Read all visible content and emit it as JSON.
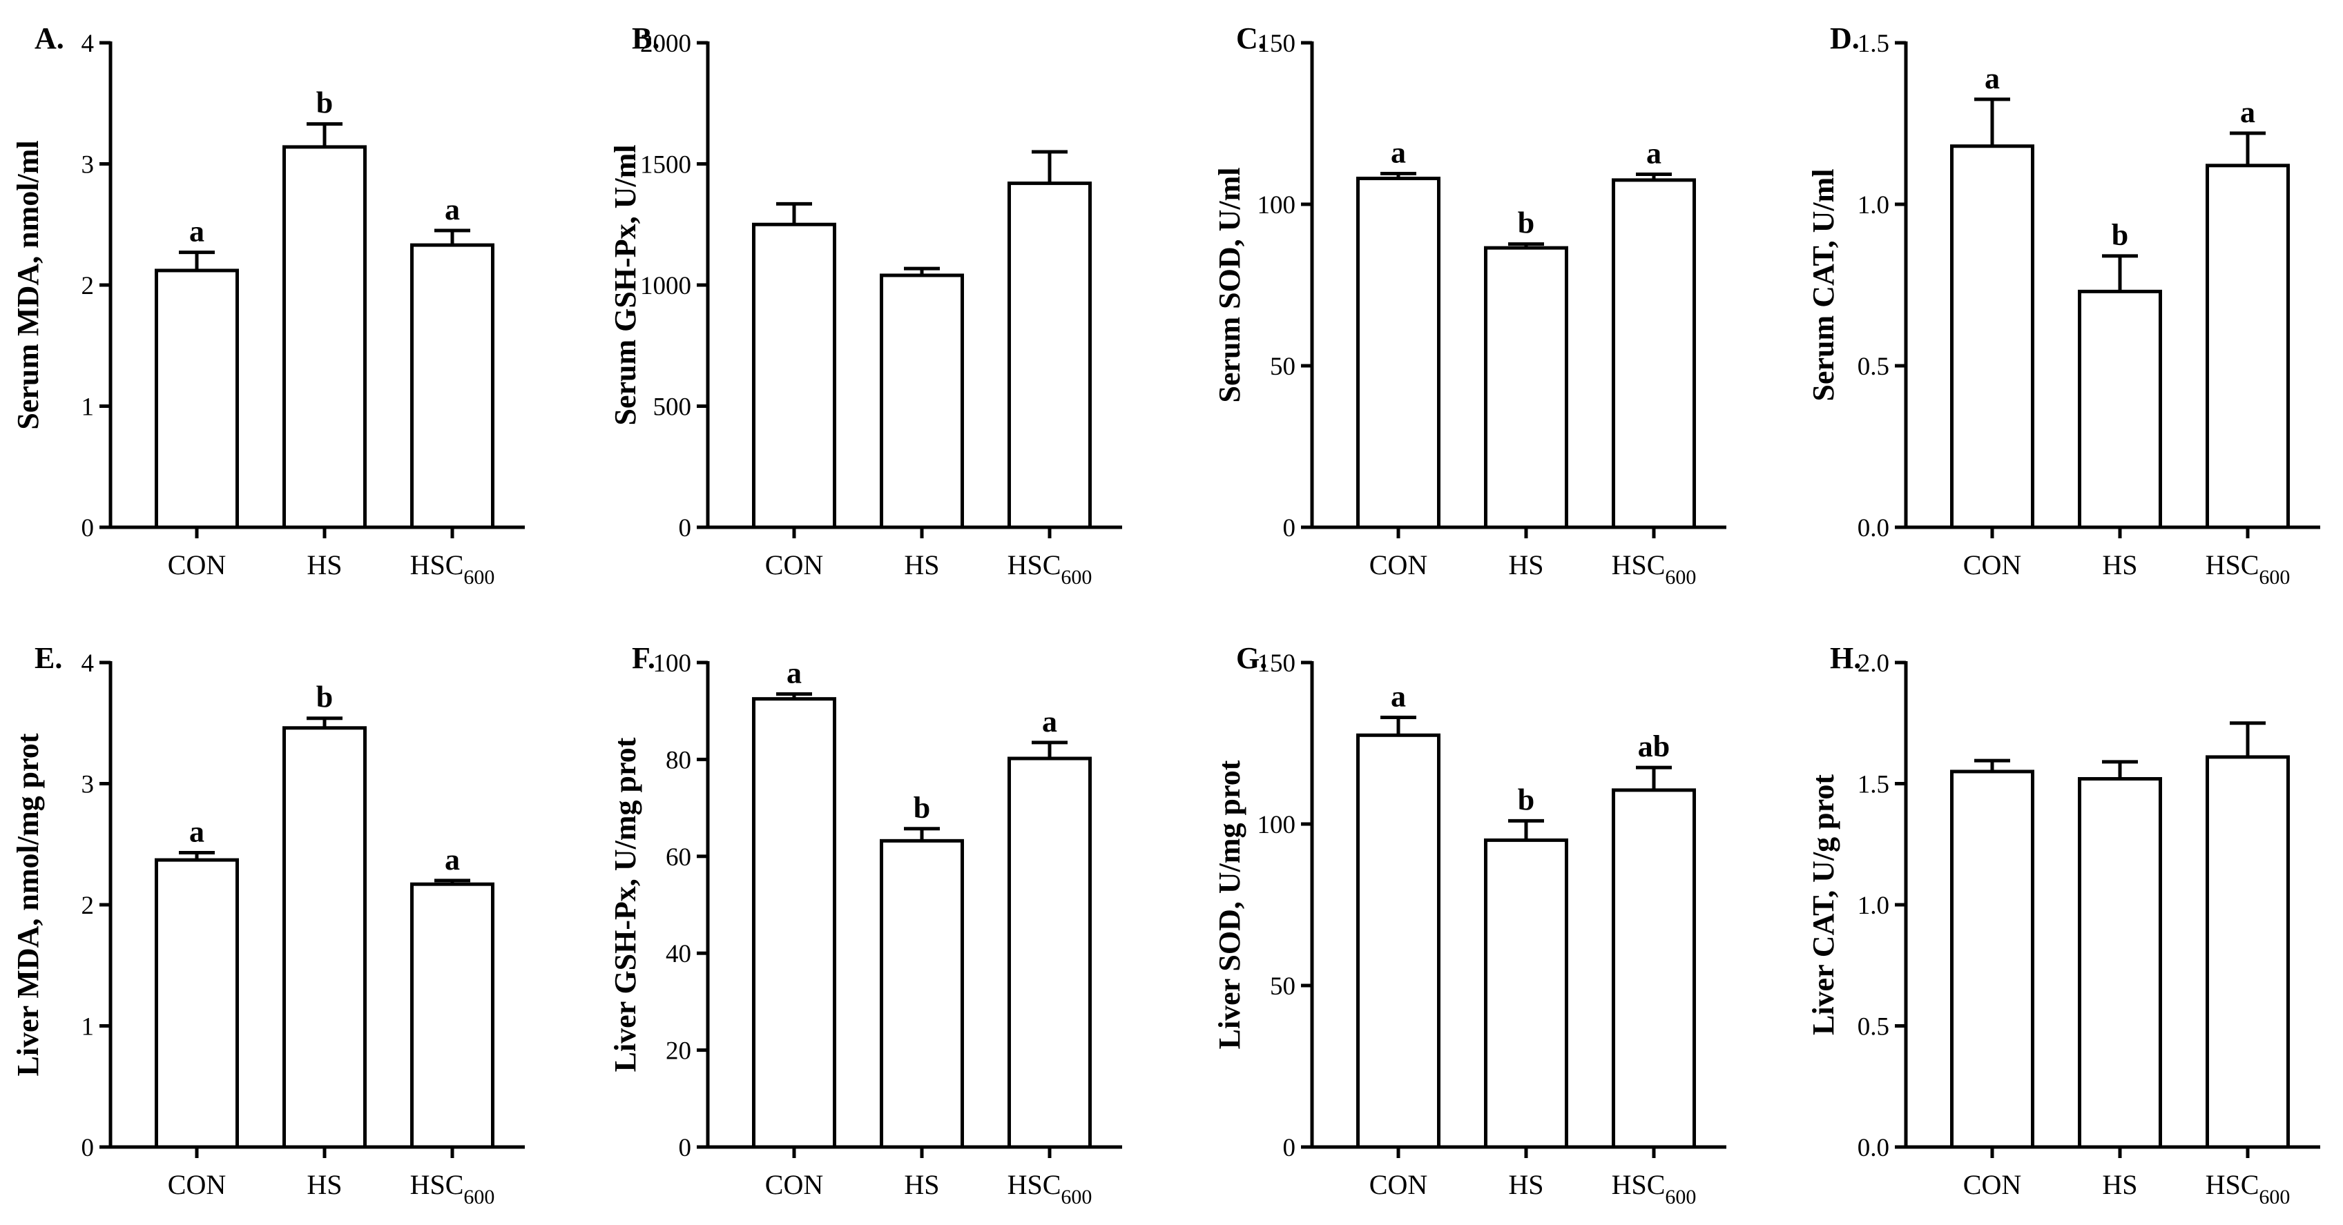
{
  "chart_data": [
    {
      "id": "A",
      "type": "bar",
      "title": "",
      "panel_label": "A.",
      "ylabel": "Serum MDA, nmol/ml",
      "xlabel": "",
      "categories": [
        {
          "main": "CON",
          "sub": ""
        },
        {
          "main": "HS",
          "sub": ""
        },
        {
          "main": "HSC",
          "sub": "600"
        }
      ],
      "values": [
        2.12,
        3.14,
        2.33
      ],
      "errors": [
        0.15,
        0.19,
        0.12
      ],
      "significance": [
        "a",
        "b",
        "a"
      ],
      "ylim": [
        0,
        4
      ],
      "ticks": [
        0,
        1,
        2,
        3,
        4
      ],
      "tick_labels": [
        "0",
        "1",
        "2",
        "3",
        "4"
      ]
    },
    {
      "id": "B",
      "type": "bar",
      "title": "",
      "panel_label": "B.",
      "ylabel": "Serum GSH-Px, U/ml",
      "xlabel": "",
      "categories": [
        {
          "main": "CON",
          "sub": ""
        },
        {
          "main": "HS",
          "sub": ""
        },
        {
          "main": "HSC",
          "sub": "600"
        }
      ],
      "values": [
        1250,
        1040,
        1420
      ],
      "errors": [
        85,
        28,
        130
      ],
      "significance": [
        "",
        "",
        ""
      ],
      "ylim": [
        0,
        2000
      ],
      "ticks": [
        0,
        500,
        1000,
        1500,
        2000
      ],
      "tick_labels": [
        "0",
        "500",
        "1000",
        "1500",
        "2000"
      ]
    },
    {
      "id": "C",
      "type": "bar",
      "title": "",
      "panel_label": "C.",
      "ylabel": "Serum SOD, U/ml",
      "xlabel": "",
      "categories": [
        {
          "main": "CON",
          "sub": ""
        },
        {
          "main": "HS",
          "sub": ""
        },
        {
          "main": "HSC",
          "sub": "600"
        }
      ],
      "values": [
        108,
        86.5,
        107.5
      ],
      "errors": [
        1.5,
        1.2,
        1.8
      ],
      "significance": [
        "a",
        "b",
        "a"
      ],
      "ylim": [
        0,
        150
      ],
      "ticks": [
        0,
        50,
        100,
        150
      ],
      "tick_labels": [
        "0",
        "50",
        "100",
        "150"
      ]
    },
    {
      "id": "D",
      "type": "bar",
      "title": "",
      "panel_label": "D.",
      "ylabel": "Serum CAT, U/ml",
      "xlabel": "",
      "categories": [
        {
          "main": "CON",
          "sub": ""
        },
        {
          "main": "HS",
          "sub": ""
        },
        {
          "main": "HSC",
          "sub": "600"
        }
      ],
      "values": [
        1.18,
        0.73,
        1.12
      ],
      "errors": [
        0.145,
        0.11,
        0.1
      ],
      "significance": [
        "a",
        "b",
        "a"
      ],
      "ylim": [
        0,
        1.5
      ],
      "ticks": [
        0,
        0.5,
        1.0,
        1.5
      ],
      "tick_labels": [
        "0.0",
        "0.5",
        "1.0",
        "1.5"
      ]
    },
    {
      "id": "E",
      "type": "bar",
      "title": "",
      "panel_label": "E.",
      "ylabel": "Liver MDA, nmol/mg prot",
      "xlabel": "",
      "categories": [
        {
          "main": "CON",
          "sub": ""
        },
        {
          "main": "HS",
          "sub": ""
        },
        {
          "main": "HSC",
          "sub": "600"
        }
      ],
      "values": [
        2.37,
        3.46,
        2.17
      ],
      "errors": [
        0.06,
        0.08,
        0.03
      ],
      "significance": [
        "a",
        "b",
        "a"
      ],
      "ylim": [
        0,
        4
      ],
      "ticks": [
        0,
        1,
        2,
        3,
        4
      ],
      "tick_labels": [
        "0",
        "1",
        "2",
        "3",
        "4"
      ]
    },
    {
      "id": "F",
      "type": "bar",
      "title": "",
      "panel_label": "F.",
      "ylabel": "Liver GSH-Px, U/mg prot",
      "xlabel": "",
      "categories": [
        {
          "main": "CON",
          "sub": ""
        },
        {
          "main": "HS",
          "sub": ""
        },
        {
          "main": "HSC",
          "sub": "600"
        }
      ],
      "values": [
        92.5,
        63.2,
        80.2
      ],
      "errors": [
        1,
        2.5,
        3.3
      ],
      "significance": [
        "a",
        "b",
        "a"
      ],
      "ylim": [
        0,
        100
      ],
      "ticks": [
        0,
        20,
        40,
        60,
        80,
        100
      ],
      "tick_labels": [
        "0",
        "20",
        "40",
        "60",
        "80",
        "100"
      ]
    },
    {
      "id": "G",
      "type": "bar",
      "title": "",
      "panel_label": "G.",
      "ylabel": "Liver SOD, U/mg prot",
      "xlabel": "",
      "categories": [
        {
          "main": "CON",
          "sub": ""
        },
        {
          "main": "HS",
          "sub": ""
        },
        {
          "main": "HSC",
          "sub": "600"
        }
      ],
      "values": [
        127.5,
        95,
        110.5
      ],
      "errors": [
        5.5,
        6,
        7
      ],
      "significance": [
        "a",
        "b",
        "ab"
      ],
      "ylim": [
        0,
        150
      ],
      "ticks": [
        0,
        50,
        100,
        150
      ],
      "tick_labels": [
        "0",
        "50",
        "100",
        "150"
      ]
    },
    {
      "id": "H",
      "type": "bar",
      "title": "",
      "panel_label": "H.",
      "ylabel": "Liver CAT, U/g prot",
      "xlabel": "",
      "categories": [
        {
          "main": "CON",
          "sub": ""
        },
        {
          "main": "HS",
          "sub": ""
        },
        {
          "main": "HSC",
          "sub": "600"
        }
      ],
      "values": [
        1.55,
        1.52,
        1.61
      ],
      "errors": [
        0.045,
        0.07,
        0.14
      ],
      "significance": [
        "",
        "",
        ""
      ],
      "ylim": [
        0,
        2
      ],
      "ticks": [
        0,
        0.5,
        1.0,
        1.5,
        2.0
      ],
      "tick_labels": [
        "0.0",
        "0.5",
        "1.0",
        "1.5",
        "2.0"
      ]
    }
  ]
}
